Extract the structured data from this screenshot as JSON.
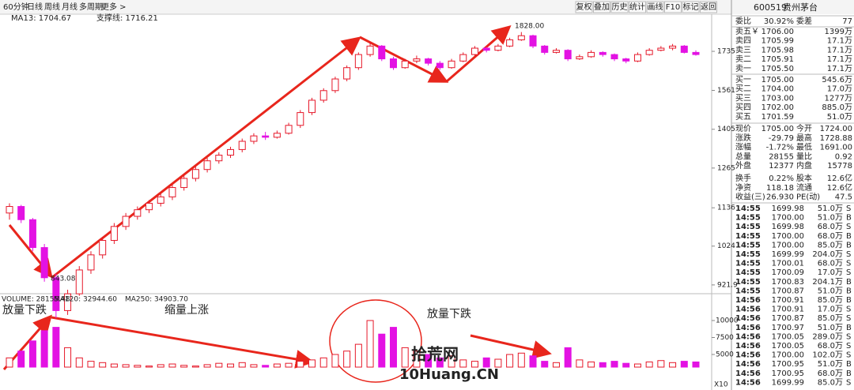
{
  "toolbar": {
    "left": [
      "60分钟",
      "日线",
      "周线",
      "月线",
      "多周期",
      "更多 >"
    ],
    "right": [
      "复权",
      "叠加",
      "历史",
      "统计",
      "画线",
      "F10",
      "标记",
      "返回"
    ]
  },
  "kline": {
    "ma_label": "MA13: 1704.67",
    "support_label": "支撑线: 1716.21",
    "ylim": [
      908,
      1890
    ],
    "log": true,
    "yticks": [
      1735,
      1561,
      1405,
      1265,
      1136,
      1024,
      921.9
    ],
    "high_label": "1828.00",
    "low_label": "843.08",
    "ohlc": [
      [
        1120,
        1150,
        1100,
        1140
      ],
      [
        1140,
        1145,
        1090,
        1100
      ],
      [
        1100,
        1105,
        1010,
        1020
      ],
      [
        1020,
        1030,
        930,
        940
      ],
      [
        940,
        950,
        843,
        860
      ],
      [
        860,
        910,
        850,
        900
      ],
      [
        900,
        970,
        895,
        960
      ],
      [
        960,
        1010,
        950,
        1000
      ],
      [
        1000,
        1050,
        990,
        1040
      ],
      [
        1040,
        1090,
        1030,
        1080
      ],
      [
        1080,
        1120,
        1070,
        1110
      ],
      [
        1110,
        1140,
        1100,
        1130
      ],
      [
        1130,
        1160,
        1120,
        1150
      ],
      [
        1150,
        1180,
        1140,
        1170
      ],
      [
        1170,
        1210,
        1160,
        1200
      ],
      [
        1200,
        1240,
        1190,
        1230
      ],
      [
        1230,
        1270,
        1220,
        1260
      ],
      [
        1260,
        1300,
        1250,
        1290
      ],
      [
        1290,
        1320,
        1280,
        1310
      ],
      [
        1310,
        1340,
        1300,
        1330
      ],
      [
        1330,
        1370,
        1320,
        1360
      ],
      [
        1360,
        1390,
        1350,
        1380
      ],
      [
        1380,
        1395,
        1365,
        1375
      ],
      [
        1375,
        1400,
        1370,
        1390
      ],
      [
        1390,
        1430,
        1385,
        1420
      ],
      [
        1420,
        1480,
        1410,
        1470
      ],
      [
        1470,
        1530,
        1460,
        1520
      ],
      [
        1520,
        1570,
        1510,
        1560
      ],
      [
        1560,
        1620,
        1550,
        1610
      ],
      [
        1610,
        1670,
        1600,
        1660
      ],
      [
        1660,
        1730,
        1650,
        1720
      ],
      [
        1720,
        1780,
        1710,
        1760
      ],
      [
        1760,
        1765,
        1690,
        1700
      ],
      [
        1700,
        1710,
        1650,
        1660
      ],
      [
        1660,
        1700,
        1655,
        1690
      ],
      [
        1690,
        1715,
        1680,
        1700
      ],
      [
        1700,
        1705,
        1670,
        1680
      ],
      [
        1680,
        1690,
        1650,
        1660
      ],
      [
        1660,
        1700,
        1655,
        1690
      ],
      [
        1690,
        1730,
        1685,
        1720
      ],
      [
        1720,
        1760,
        1715,
        1750
      ],
      [
        1750,
        1755,
        1730,
        1740
      ],
      [
        1740,
        1770,
        1735,
        1760
      ],
      [
        1760,
        1800,
        1755,
        1790
      ],
      [
        1790,
        1828,
        1785,
        1810
      ],
      [
        1810,
        1815,
        1750,
        1760
      ],
      [
        1760,
        1765,
        1720,
        1730
      ],
      [
        1730,
        1750,
        1725,
        1740
      ],
      [
        1740,
        1745,
        1690,
        1700
      ],
      [
        1700,
        1720,
        1695,
        1710
      ],
      [
        1710,
        1740,
        1705,
        1730
      ],
      [
        1730,
        1735,
        1710,
        1720
      ],
      [
        1720,
        1725,
        1690,
        1700
      ],
      [
        1700,
        1705,
        1680,
        1690
      ],
      [
        1690,
        1730,
        1685,
        1720
      ],
      [
        1720,
        1750,
        1715,
        1740
      ],
      [
        1740,
        1760,
        1735,
        1750
      ],
      [
        1750,
        1770,
        1740,
        1760
      ],
      [
        1760,
        1765,
        1725,
        1730
      ],
      [
        1730,
        1740,
        1715,
        1720
      ]
    ]
  },
  "volume": {
    "header": [
      "VOLUME: 28155.48",
      "MA120: 32944.60",
      "MA250: 34903.70"
    ],
    "yticks": [
      10000,
      7500,
      5000
    ],
    "scale_label": "X10",
    "values": [
      4500,
      5500,
      7000,
      8500,
      9000,
      6000,
      4500,
      4000,
      3800,
      3600,
      3500,
      3400,
      3300,
      3500,
      3600,
      3400,
      3300,
      3500,
      3700,
      3600,
      3800,
      3500,
      3400,
      3600,
      3700,
      4000,
      4200,
      4500,
      5000,
      5500,
      6500,
      10000,
      8000,
      9000,
      6000,
      5500,
      5000,
      4500,
      4800,
      4200,
      4000,
      4500,
      4300,
      5000,
      5200,
      4800,
      4000,
      3800,
      6000,
      4200,
      3900,
      3800,
      4000,
      3700,
      3600,
      3900,
      4100,
      3800,
      4000,
      3900
    ]
  },
  "annotations": [
    "放量下跌",
    "缩量上涨",
    "放量下跌"
  ],
  "watermark": [
    "拾荒网",
    "10Huang.CN"
  ],
  "quote": {
    "code": "600519",
    "name": "贵州茅台",
    "summary": [
      "委比",
      "30.92%",
      "委差",
      "77"
    ],
    "asks": [
      [
        "卖五￥",
        "1706.00",
        "1399万"
      ],
      [
        "卖四",
        "1705.99",
        "17.1万"
      ],
      [
        "卖三",
        "1705.98",
        "17.1万"
      ],
      [
        "卖二",
        "1705.91",
        "17.1万"
      ],
      [
        "卖一",
        "1705.50",
        "17.1万"
      ]
    ],
    "bids": [
      [
        "买一",
        "1705.00",
        "545.6万"
      ],
      [
        "买二",
        "1704.00",
        "17.0万"
      ],
      [
        "买三",
        "1703.00",
        "1277万"
      ],
      [
        "买四",
        "1702.00",
        "885.0万"
      ],
      [
        "买五",
        "1701.59",
        "51.0万"
      ]
    ],
    "stats": [
      [
        "现价",
        "1705.00",
        "今开",
        "1724.00"
      ],
      [
        "涨跌",
        "-29.79",
        "最高",
        "1728.88"
      ],
      [
        "涨幅",
        "-1.72%",
        "最低",
        "1691.00"
      ],
      [
        "总量",
        "28155",
        "量比",
        "0.92"
      ],
      [
        "外盘",
        "12377",
        "内盘",
        "15778"
      ],
      [
        "换手",
        "0.22%",
        "股本",
        "12.6亿"
      ],
      [
        "净资",
        "118.18",
        "流通",
        "12.6亿"
      ],
      [
        "收益(三)",
        "26.930",
        "PE(动)",
        "47.5"
      ]
    ],
    "trades": [
      [
        "14:55",
        "1699.98",
        "51.0万",
        "S"
      ],
      [
        "14:55",
        "1700.00",
        "51.0万",
        "B"
      ],
      [
        "14:55",
        "1699.98",
        "68.0万",
        "S"
      ],
      [
        "14:55",
        "1700.00",
        "68.0万",
        "B"
      ],
      [
        "14:55",
        "1700.00",
        "85.0万",
        "B"
      ],
      [
        "14:55",
        "1699.99",
        "204.0万",
        "S"
      ],
      [
        "14:55",
        "1700.01",
        "68.0万",
        "S"
      ],
      [
        "14:55",
        "1700.09",
        "17.0万",
        "S"
      ],
      [
        "14:55",
        "1700.83",
        "204.1万",
        "B"
      ],
      [
        "14:55",
        "1700.87",
        "51.0万",
        "B"
      ],
      [
        "14:56",
        "1700.91",
        "85.0万",
        "B"
      ],
      [
        "14:56",
        "1700.91",
        "17.0万",
        "S"
      ],
      [
        "14:56",
        "1700.87",
        "85.0万",
        "S"
      ],
      [
        "14:56",
        "1700.97",
        "51.0万",
        "B"
      ],
      [
        "14:56",
        "1700.05",
        "289.0万",
        "S"
      ],
      [
        "14:56",
        "1700.05",
        "68.0万",
        "S"
      ],
      [
        "14:56",
        "1700.00",
        "102.0万",
        "S"
      ],
      [
        "14:56",
        "1700.95",
        "51.0万",
        "B"
      ],
      [
        "14:56",
        "1700.95",
        "68.0万",
        "B"
      ],
      [
        "14:56",
        "1699.99",
        "85.0万",
        "S"
      ]
    ]
  }
}
